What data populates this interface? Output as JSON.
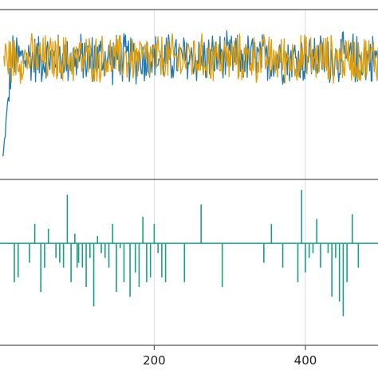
{
  "chart_data": [
    {
      "type": "line",
      "title": "",
      "xlabel": "",
      "ylabel": "",
      "xlim": [
        -4,
        496
      ],
      "ylim": [
        -3.6,
        2.3
      ],
      "grid": true,
      "legend": "none",
      "x_ticks": [
        200,
        400
      ],
      "series": [
        {
          "color": "#1f77b4",
          "start": 0,
          "end": 500,
          "mean": 0.6,
          "spread": 1.0,
          "transient": {
            "start": -2.8,
            "length": 12
          }
        },
        {
          "color": "#e09d0a",
          "start": 1,
          "end": 500,
          "mean": 0.6,
          "spread": 0.95
        }
      ]
    },
    {
      "type": "line",
      "title": "",
      "xlabel": "",
      "ylabel": "",
      "xlim": [
        -4,
        496
      ],
      "ylim": [
        -2.1,
        1.3
      ],
      "grid": true,
      "legend": "none",
      "x_ticks": [
        200,
        400
      ],
      "series": [
        {
          "color": "#1a9e85",
          "baseline": 0,
          "spikes": [
            [
              15,
              -0.8
            ],
            [
              20,
              -0.7
            ],
            [
              35,
              -0.4
            ],
            [
              42,
              0.4
            ],
            [
              50,
              -1.0
            ],
            [
              55,
              -0.5
            ],
            [
              60,
              0.3
            ],
            [
              70,
              -0.3
            ],
            [
              75,
              -0.4
            ],
            [
              80,
              -0.5
            ],
            [
              85,
              1.0
            ],
            [
              90,
              -0.8
            ],
            [
              95,
              0.2
            ],
            [
              98,
              -0.5
            ],
            [
              100,
              -0.4
            ],
            [
              105,
              -0.5
            ],
            [
              110,
              -0.9
            ],
            [
              115,
              -0.3
            ],
            [
              120,
              -1.3
            ],
            [
              125,
              0.15
            ],
            [
              130,
              -0.2
            ],
            [
              135,
              -0.3
            ],
            [
              140,
              -0.5
            ],
            [
              145,
              0.4
            ],
            [
              150,
              -1.0
            ],
            [
              155,
              -0.1
            ],
            [
              160,
              -0.8
            ],
            [
              168,
              -1.1
            ],
            [
              175,
              -0.6
            ],
            [
              180,
              -0.9
            ],
            [
              185,
              0.55
            ],
            [
              190,
              -0.8
            ],
            [
              195,
              -0.7
            ],
            [
              200,
              0.4
            ],
            [
              205,
              -0.2
            ],
            [
              210,
              -0.7
            ],
            [
              215,
              -0.8
            ],
            [
              240,
              -0.8
            ],
            [
              262,
              0.8
            ],
            [
              290,
              -0.9
            ],
            [
              345,
              -0.4
            ],
            [
              355,
              0.4
            ],
            [
              370,
              -0.5
            ],
            [
              390,
              -0.8
            ],
            [
              395,
              1.1
            ],
            [
              400,
              -0.6
            ],
            [
              405,
              -0.3
            ],
            [
              410,
              -0.2
            ],
            [
              415,
              0.5
            ],
            [
              420,
              -0.5
            ],
            [
              430,
              -0.2
            ],
            [
              435,
              -1.1
            ],
            [
              440,
              -0.3
            ],
            [
              445,
              -1.2
            ],
            [
              450,
              -1.5
            ],
            [
              455,
              -0.8
            ],
            [
              462,
              0.6
            ],
            [
              470,
              -0.5
            ]
          ]
        }
      ]
    }
  ]
}
